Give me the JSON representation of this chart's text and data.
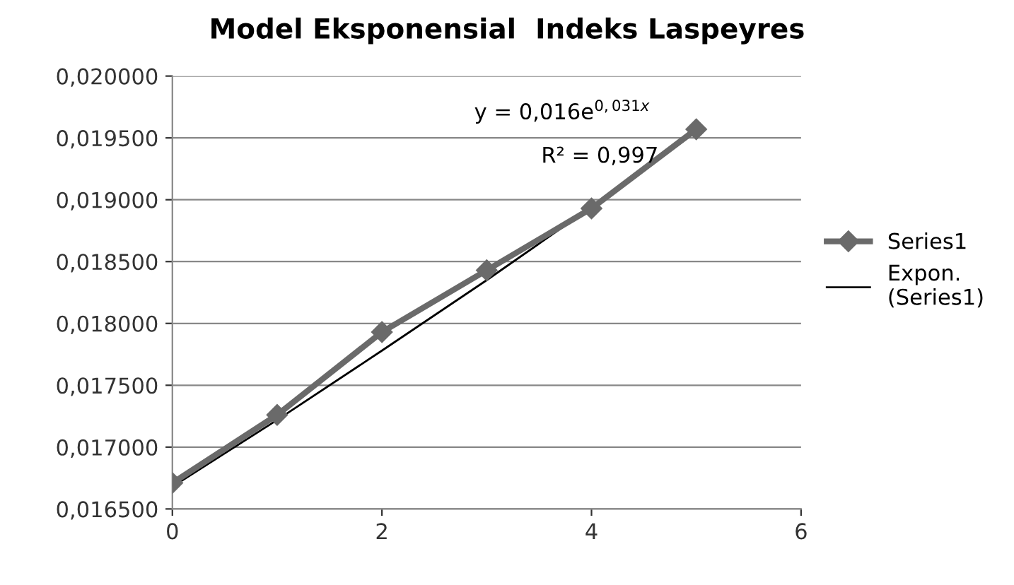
{
  "chart_data": {
    "type": "line",
    "title": "Model Eksponensial  Indeks Laspeyres",
    "series": [
      {
        "name": "Series1",
        "color": "#6a6a6a",
        "marker": "diamond",
        "x": [
          0,
          1,
          2,
          3,
          4,
          5
        ],
        "values": [
          0.01671,
          0.01726,
          0.01793,
          0.01843,
          0.01893,
          0.01957
        ]
      },
      {
        "name": "Expon.\n(Series1)",
        "color": "#000000",
        "marker": "none",
        "x": [
          0,
          1,
          2,
          3,
          4,
          5
        ],
        "values": [
          0.01668,
          0.01722,
          0.01778,
          0.01835,
          0.01894,
          0.01955
        ]
      }
    ],
    "annotations": [
      "y = 0,016e$^{0,031x}$",
      "R² = 0,997"
    ],
    "xlim": [
      0,
      6
    ],
    "xticks": [
      0,
      2,
      4,
      6
    ],
    "ylim": [
      0.0165,
      0.02
    ],
    "yticks": [
      {
        "value": 0.0165,
        "label": "0,016500"
      },
      {
        "value": 0.017,
        "label": "0,017000"
      },
      {
        "value": 0.0175,
        "label": "0,017500"
      },
      {
        "value": 0.018,
        "label": "0,018000"
      },
      {
        "value": 0.0185,
        "label": "0,018500"
      },
      {
        "value": 0.019,
        "label": "0,019000"
      },
      {
        "value": 0.0195,
        "label": "0,019500"
      },
      {
        "value": 0.02,
        "label": "0,020000"
      }
    ],
    "grid": "y",
    "legend": "right"
  }
}
